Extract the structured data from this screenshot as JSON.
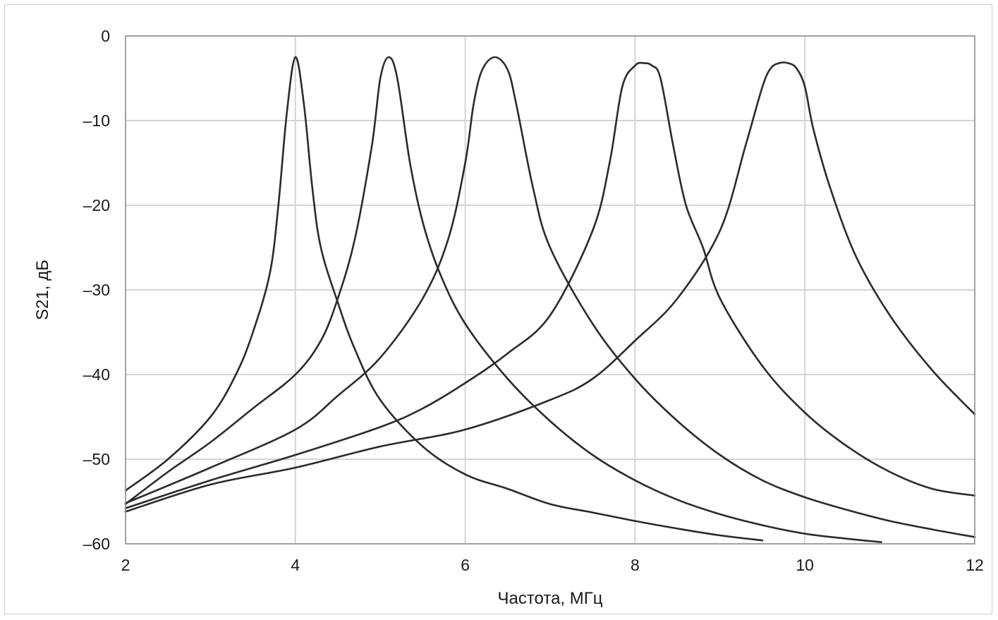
{
  "chart_data": {
    "type": "line",
    "title": "",
    "xlabel": "Частота, МГц",
    "ylabel": "S21, дБ",
    "xlim": [
      2,
      12
    ],
    "ylim": [
      -60,
      0
    ],
    "x_ticks": [
      2,
      4,
      6,
      8,
      10,
      12
    ],
    "y_ticks": [
      0,
      -10,
      -20,
      -30,
      -40,
      -50,
      -60
    ],
    "x_tick_labels": [
      "2",
      "4",
      "6",
      "8",
      "10",
      "12"
    ],
    "y_tick_labels": [
      "0",
      "–10",
      "–20",
      "–30",
      "–40",
      "–50",
      "–60"
    ],
    "grid": true,
    "legend": "none",
    "line_color": "#2b2b2b",
    "series": [
      {
        "x": [
          2.0,
          2.5,
          3.0,
          3.3,
          3.5,
          3.7,
          3.8,
          3.9,
          4.0,
          4.1,
          4.2,
          4.3,
          4.5,
          4.7,
          5.0,
          5.5,
          6.0,
          6.5,
          7.0,
          7.5,
          8.0,
          8.5,
          9.0,
          9.5
        ],
        "y": [
          -53.7,
          -50,
          -45,
          -40,
          -35,
          -28,
          -20,
          -9,
          -2.5,
          -8,
          -18,
          -25,
          -31.5,
          -37,
          -43,
          -48.5,
          -51.8,
          -53.5,
          -55.3,
          -56.3,
          -57.3,
          -58.2,
          -59,
          -59.6
        ]
      },
      {
        "x": [
          2.0,
          2.5,
          3.0,
          3.5,
          4.0,
          4.3,
          4.5,
          4.7,
          4.9,
          5.0,
          5.1,
          5.2,
          5.35,
          5.5,
          5.7,
          6.0,
          6.5,
          7.0,
          7.5,
          8.0,
          8.5,
          9.0,
          9.5,
          10.0,
          10.5,
          10.9
        ],
        "y": [
          -55.3,
          -51.5,
          -48,
          -44,
          -40,
          -36,
          -31,
          -24,
          -13,
          -5,
          -2.5,
          -5,
          -15,
          -22,
          -28,
          -34,
          -40.5,
          -45.5,
          -49.5,
          -52.5,
          -54.8,
          -56.5,
          -57.8,
          -58.8,
          -59.4,
          -59.8
        ]
      },
      {
        "x": [
          2.0,
          3.0,
          4.0,
          4.5,
          5.0,
          5.5,
          5.8,
          6.0,
          6.1,
          6.2,
          6.35,
          6.5,
          6.6,
          6.8,
          7.0,
          7.5,
          8.0,
          8.5,
          9.0,
          9.5,
          10.0,
          10.5,
          11.0,
          11.5,
          12.0
        ],
        "y": [
          -55.2,
          -51,
          -46.5,
          -42.5,
          -38,
          -31,
          -24,
          -15,
          -8,
          -4,
          -2.5,
          -4,
          -8,
          -18,
          -25,
          -34,
          -40.5,
          -45.5,
          -49.5,
          -52.5,
          -54.5,
          -56,
          -57.3,
          -58.3,
          -59.2
        ]
      },
      {
        "x": [
          2.0,
          3.0,
          4.0,
          5.0,
          5.5,
          6.0,
          6.5,
          7.0,
          7.5,
          7.7,
          7.85,
          8.0,
          8.1,
          8.2,
          8.3,
          8.45,
          8.6,
          8.8,
          9.0,
          9.5,
          10.0,
          10.5,
          11.0,
          11.5,
          12.0
        ],
        "y": [
          -55.8,
          -52.5,
          -49.5,
          -46.2,
          -44,
          -41,
          -37.5,
          -33,
          -23,
          -15,
          -6,
          -3.5,
          -3.2,
          -3.5,
          -5,
          -13,
          -20,
          -25,
          -31,
          -39,
          -44.5,
          -48.5,
          -51.5,
          -53.5,
          -54.3
        ]
      },
      {
        "x": [
          2.0,
          3.0,
          4.0,
          5.0,
          6.0,
          7.0,
          7.5,
          8.0,
          8.5,
          9.0,
          9.3,
          9.5,
          9.6,
          9.7,
          9.8,
          9.9,
          10.0,
          10.1,
          10.3,
          10.6,
          11.0,
          11.5,
          12.0
        ],
        "y": [
          -56.2,
          -53,
          -51,
          -48.5,
          -46.5,
          -43,
          -40.5,
          -36,
          -31,
          -23,
          -13,
          -6,
          -3.8,
          -3.2,
          -3.2,
          -3.8,
          -6,
          -11,
          -18,
          -26,
          -33,
          -39.5,
          -44.7
        ]
      }
    ]
  }
}
